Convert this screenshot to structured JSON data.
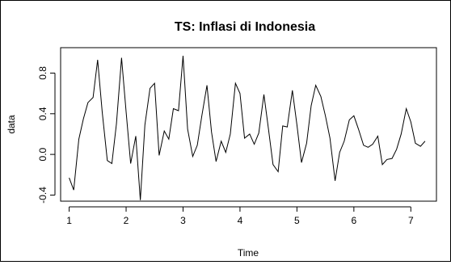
{
  "chart_data": {
    "type": "line",
    "title": "TS: Inflasi di Indonesia",
    "xlabel": "Time",
    "ylabel": "data",
    "xlim": [
      0.85,
      7.45
    ],
    "ylim": [
      -0.46,
      1.05
    ],
    "x_ticks": [
      1,
      2,
      3,
      4,
      5,
      6,
      7
    ],
    "x_tick_labels": [
      "1",
      "2",
      "3",
      "4",
      "5",
      "6",
      "7"
    ],
    "y_ticks": [
      -0.4,
      0.0,
      0.4,
      0.8
    ],
    "y_tick_labels": [
      "-0.4",
      "0.0",
      "0.4",
      "0.8"
    ],
    "grid": false,
    "series": [
      {
        "color": "#000000",
        "x": [
          1.0,
          1.08,
          1.17,
          1.25,
          1.33,
          1.42,
          1.5,
          1.58,
          1.67,
          1.75,
          1.83,
          1.92,
          2.0,
          2.08,
          2.17,
          2.25,
          2.33,
          2.42,
          2.5,
          2.58,
          2.67,
          2.75,
          2.83,
          2.92,
          3.0,
          3.08,
          3.17,
          3.25,
          3.33,
          3.42,
          3.5,
          3.58,
          3.67,
          3.75,
          3.83,
          3.92,
          4.0,
          4.08,
          4.17,
          4.25,
          4.33,
          4.42,
          4.5,
          4.58,
          4.67,
          4.75,
          4.83,
          4.92,
          5.0,
          5.08,
          5.17,
          5.25,
          5.33,
          5.42,
          5.5,
          5.58,
          5.67,
          5.75,
          5.83,
          5.92,
          6.0,
          6.08,
          6.17,
          6.25,
          6.33,
          6.42,
          6.5,
          6.58,
          6.67,
          6.75,
          6.83,
          6.92,
          7.0,
          7.08,
          7.17,
          7.25
        ],
        "y": [
          -0.23,
          -0.35,
          0.15,
          0.35,
          0.51,
          0.56,
          0.93,
          0.42,
          -0.06,
          -0.09,
          0.3,
          0.95,
          0.42,
          -0.09,
          0.18,
          -0.45,
          0.29,
          0.65,
          0.7,
          -0.01,
          0.23,
          0.15,
          0.45,
          0.43,
          0.97,
          0.25,
          -0.02,
          0.09,
          0.38,
          0.68,
          0.22,
          -0.07,
          0.13,
          0.02,
          0.2,
          0.7,
          0.6,
          0.16,
          0.2,
          0.1,
          0.21,
          0.59,
          0.25,
          -0.1,
          -0.17,
          0.28,
          0.27,
          0.63,
          0.29,
          -0.08,
          0.11,
          0.48,
          0.68,
          0.57,
          0.38,
          0.16,
          -0.26,
          0.02,
          0.13,
          0.34,
          0.38,
          0.25,
          0.09,
          0.07,
          0.1,
          0.18,
          -0.1,
          -0.05,
          -0.04,
          0.05,
          0.2,
          0.45,
          0.32,
          0.11,
          0.08,
          0.13
        ]
      }
    ]
  }
}
